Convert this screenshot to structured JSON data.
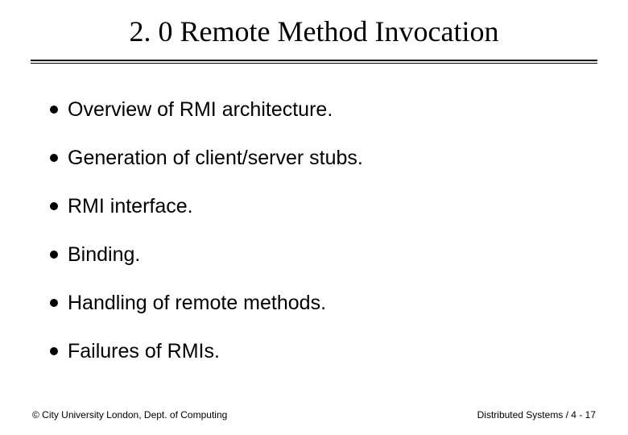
{
  "slide": {
    "title": "2. 0 Remote Method Invocation",
    "title_fontsize": 36,
    "title_font": "Times New Roman",
    "bullets": [
      "Overview of RMI architecture.",
      "Generation of client/server stubs.",
      "RMI interface.",
      "Binding.",
      "Handling of remote methods.",
      "Failures of RMIs."
    ],
    "bullet_fontsize": 25,
    "bullet_marker_color": "#000000",
    "bullet_marker_size": 10,
    "footer_left": "© City University London, Dept. of Computing",
    "footer_right": "Distributed Systems / 4 - 17",
    "footer_fontsize": 12,
    "background_color": "#ffffff",
    "text_color": "#000000",
    "divider_color": "#000000"
  }
}
